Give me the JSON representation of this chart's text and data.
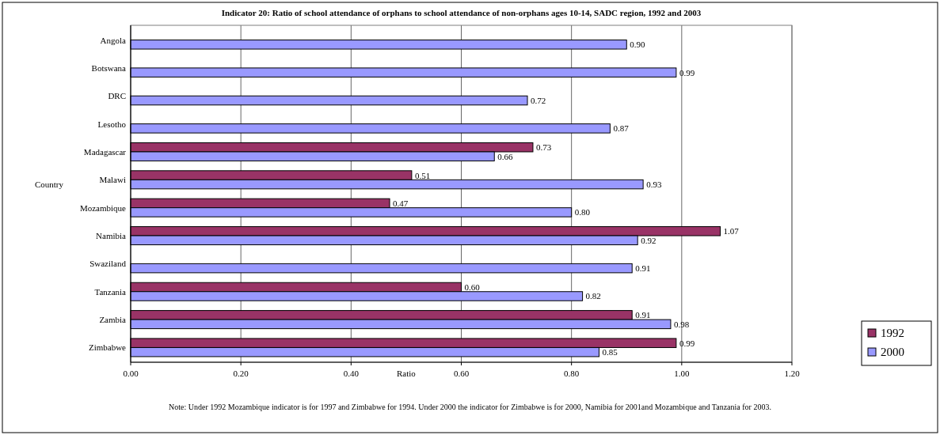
{
  "chart_data": {
    "type": "bar",
    "orientation": "horizontal",
    "title": "Indicator 20: Ratio of school attendance of orphans to school attendance of non-orphans ages 10-14, SADC region, 1992 and 2003",
    "xlabel": "Ratio",
    "ylabel": "Country",
    "categories": [
      "Angola",
      "Botswana",
      "DRC",
      "Lesotho",
      "Madagascar",
      "Malawi",
      "Mozambique",
      "Namibia",
      "Swaziland",
      "Tanzania",
      "Zambia",
      "Zimbabwe"
    ],
    "series": [
      {
        "name": "1992",
        "color": "#993366",
        "values": [
          null,
          null,
          null,
          null,
          0.73,
          0.51,
          0.47,
          1.07,
          null,
          0.6,
          0.91,
          0.99
        ],
        "value_labels": [
          null,
          null,
          null,
          null,
          "0.73",
          "0.51",
          "0.47",
          "1.07",
          null,
          "0.60",
          "0.91",
          "0.99"
        ]
      },
      {
        "name": "2000",
        "color": "#9999ff",
        "values": [
          0.9,
          0.99,
          0.72,
          0.87,
          0.66,
          0.93,
          0.8,
          0.92,
          0.91,
          0.82,
          0.98,
          0.85
        ],
        "value_labels": [
          "0.90",
          "0.99",
          "0.72",
          "0.87",
          "0.66",
          "0.93",
          "0.80",
          "0.92",
          "0.91",
          "0.82",
          "0.98",
          "0.85"
        ]
      }
    ],
    "xlim": [
      0,
      1.2
    ],
    "xticks": [
      {
        "value": 0,
        "label": "0.00"
      },
      {
        "value": 0.2,
        "label": "0.20"
      },
      {
        "value": 0.4,
        "label": "0.40"
      },
      {
        "value": 0.6,
        "label": "0.60"
      },
      {
        "value": 0.8,
        "label": "0.80"
      },
      {
        "value": 1,
        "label": "1.00"
      },
      {
        "value": 1.2,
        "label": "1.20"
      }
    ],
    "grid": "x",
    "legend": "right",
    "annotations": [
      "Note: Under 1992 Mozambique indicator is for 1997 and Zimbabwe for 1994. Under 2000 the indicator for Zimbabwe is for 2000, Namibia for 2001and Mozambique and Tanzania for 2003."
    ]
  }
}
